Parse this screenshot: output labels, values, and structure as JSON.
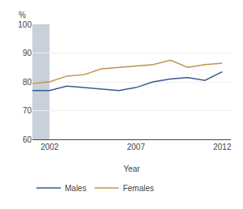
{
  "chart_data": {
    "type": "line",
    "x": [
      2001,
      2002,
      2003,
      2004,
      2005,
      2006,
      2007,
      2008,
      2009,
      2010,
      2011,
      2012
    ],
    "series": [
      {
        "name": "Males",
        "color": "#3A5B8C",
        "values": [
          77.0,
          77.0,
          78.5,
          78.0,
          77.5,
          77.0,
          78.0,
          80.0,
          81.0,
          81.5,
          80.5,
          83.5
        ]
      },
      {
        "name": "Females",
        "color": "#C0944A",
        "values": [
          79.5,
          80.0,
          82.0,
          82.5,
          84.5,
          85.0,
          85.5,
          86.0,
          87.5,
          85.0,
          86.0,
          86.5
        ]
      }
    ],
    "xlabel": "Year",
    "ylabel": "%",
    "xlim": [
      2001,
      2012.5
    ],
    "xticks": [
      2002,
      2007,
      2012
    ],
    "ylim": [
      60,
      100
    ],
    "yticks": [
      60,
      70,
      80,
      90,
      100
    ],
    "grid": "y",
    "legend": "bottom",
    "shaded": {
      "x": [
        2001,
        2002
      ],
      "color": "#C8D0DC"
    }
  }
}
